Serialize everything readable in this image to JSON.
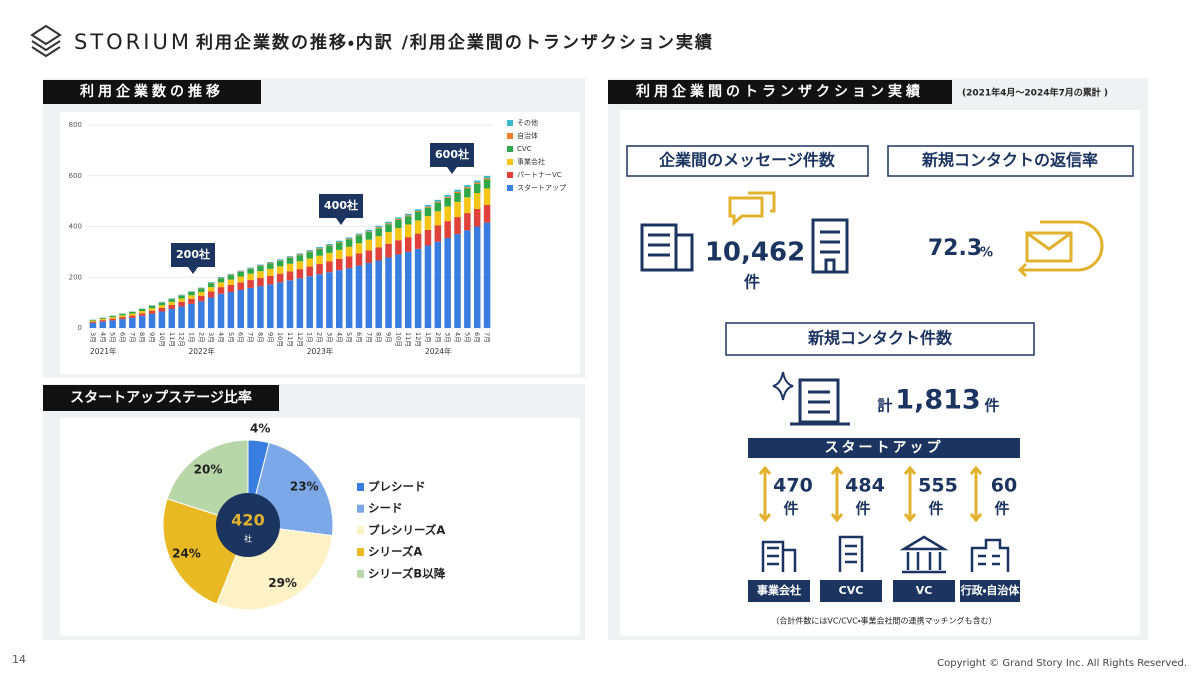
{
  "header": {
    "logo": "STORIUM",
    "title": "利用企業数の推移・内訳 /利用企業間のトランザクション実績"
  },
  "chart_data": [
    {
      "type": "bar",
      "stacked": true,
      "title": "利用企業数の推移",
      "categories": [
        "3月",
        "4月",
        "5月",
        "6月",
        "7月",
        "8月",
        "9月",
        "10月",
        "11月",
        "12月",
        "1月",
        "2月",
        "3月",
        "4月",
        "5月",
        "6月",
        "7月",
        "8月",
        "9月",
        "10月",
        "11月",
        "12月",
        "1月",
        "2月",
        "3月",
        "4月",
        "5月",
        "6月",
        "7月",
        "8月",
        "9月",
        "10月",
        "11月",
        "12月",
        "1月",
        "2月",
        "3月",
        "4月",
        "5月",
        "6月",
        "7月"
      ],
      "year_labels": [
        "2021年",
        "2022年",
        "2023年",
        "2024年"
      ],
      "series": [
        {
          "name": "スタートアップ",
          "color": "#3a7de0",
          "values": [
            20,
            25,
            30,
            35,
            40,
            48,
            56,
            65,
            75,
            85,
            95,
            105,
            120,
            135,
            142,
            150,
            158,
            165,
            172,
            180,
            188,
            196,
            204,
            212,
            220,
            228,
            236,
            246,
            256,
            266,
            278,
            290,
            300,
            312,
            325,
            340,
            355,
            370,
            385,
            400,
            415
          ]
        },
        {
          "name": "パートナーVC",
          "color": "#e0413a",
          "values": [
            5,
            6,
            7,
            8,
            9,
            10,
            12,
            14,
            16,
            18,
            20,
            22,
            24,
            26,
            28,
            30,
            31,
            32,
            33,
            34,
            35,
            36,
            38,
            40,
            42,
            44,
            46,
            48,
            50,
            52,
            54,
            56,
            58,
            60,
            62,
            64,
            66,
            67,
            68,
            69,
            70
          ]
        },
        {
          "name": "事業会社",
          "color": "#f5c518",
          "values": [
            4,
            5,
            6,
            7,
            8,
            9,
            10,
            11,
            12,
            13,
            14,
            15,
            17,
            19,
            21,
            23,
            25,
            27,
            28,
            29,
            30,
            31,
            32,
            33,
            34,
            36,
            38,
            40,
            42,
            44,
            46,
            48,
            50,
            52,
            54,
            56,
            58,
            60,
            62,
            63,
            65
          ]
        },
        {
          "name": "CVC",
          "color": "#2ea84a",
          "values": [
            3,
            4,
            5,
            6,
            7,
            8,
            9,
            10,
            11,
            12,
            13,
            14,
            15,
            16,
            17,
            18,
            19,
            20,
            21,
            22,
            23,
            24,
            25,
            26,
            27,
            28,
            29,
            30,
            30,
            31,
            31,
            32,
            32,
            33,
            33,
            34,
            34,
            35,
            35,
            36,
            36
          ]
        },
        {
          "name": "自治体",
          "color": "#f07f23",
          "values": [
            0,
            0,
            0,
            0,
            0,
            1,
            1,
            1,
            1,
            1,
            1,
            1,
            2,
            2,
            2,
            2,
            2,
            2,
            2,
            2,
            3,
            3,
            3,
            3,
            3,
            3,
            3,
            3,
            3,
            4,
            4,
            4,
            4,
            4,
            4,
            4,
            4,
            5,
            5,
            5,
            5
          ]
        },
        {
          "name": "その他",
          "color": "#3bb8c9",
          "values": [
            1,
            1,
            1,
            1,
            1,
            1,
            2,
            2,
            2,
            2,
            2,
            2,
            3,
            3,
            3,
            3,
            3,
            4,
            4,
            4,
            4,
            4,
            5,
            5,
            5,
            5,
            5,
            5,
            6,
            6,
            6,
            6,
            6,
            7,
            7,
            7,
            7,
            8,
            8,
            8,
            8
          ]
        }
      ],
      "ylim": [
        0,
        800
      ],
      "yticks": [
        0,
        200,
        400,
        600,
        800
      ],
      "grid": true,
      "annotations": [
        "200社",
        "400社",
        "600社"
      ]
    },
    {
      "type": "pie",
      "title": "スタートアップステージ比率",
      "categories": [
        "プレシード",
        "シード",
        "プレシリーズA",
        "シリーズA",
        "シリーズB以降"
      ],
      "values": [
        4,
        23,
        29,
        24,
        20
      ],
      "value_labels": [
        "4%",
        "23%",
        "29%",
        "24%",
        "20%"
      ],
      "colors": [
        "#3a7de0",
        "#7da8e8",
        "#fdf1c6",
        "#e9b923",
        "#b7d7a8"
      ],
      "center_value": "420",
      "center_unit": "社"
    }
  ],
  "transactions": {
    "title": "利用企業間のトランザクション実績",
    "period": "(2021年4月～2024年7月の累計 )",
    "messages": {
      "label": "企業間のメッセージ件数",
      "value": "10,462",
      "unit": "件"
    },
    "reply_rate": {
      "label": "新規コンタクトの返信率",
      "value": "72.3",
      "unit": "%"
    },
    "contacts": {
      "label": "新規コンタクト件数",
      "prefix": "計",
      "value": "1,813",
      "unit": "件",
      "group": "スタートアップ",
      "breakdown": [
        {
          "count": "470",
          "unit": "件",
          "label": "事業会社"
        },
        {
          "count": "484",
          "unit": "件",
          "label": "CVC"
        },
        {
          "count": "555",
          "unit": "件",
          "label": "VC"
        },
        {
          "count": "60",
          "unit": "件",
          "label": "行政・自治体"
        }
      ]
    },
    "note": "（合計件数にはVC/CVC・事業会社間の連携マッチングも含む）"
  },
  "footer": {
    "page": "14",
    "copyright": "Copyright © Grand Story Inc. All Rights Reserved."
  }
}
